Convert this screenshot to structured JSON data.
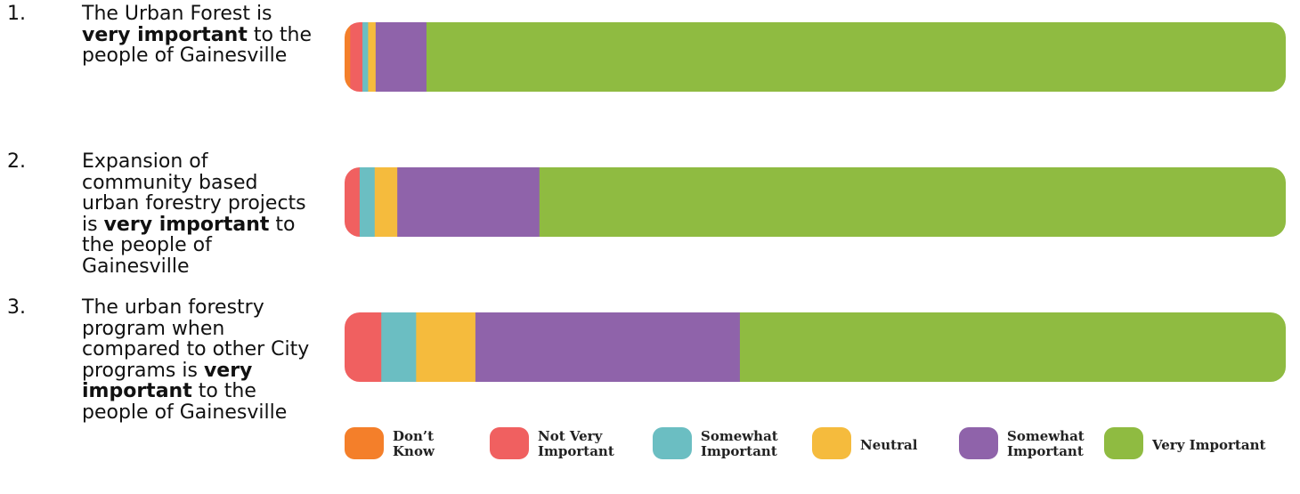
{
  "statements": [
    {
      "number": "1.",
      "before": "The Urban Forest is ",
      "bold": "very important",
      "after": " to the people of Gainesville"
    },
    {
      "number": "2.",
      "before": "Expansion of community based urban forestry projects is ",
      "bold": "very important",
      "after": " to the people of Gainesville"
    },
    {
      "number": "3.",
      "before": "The urban forestry program when compared to other City programs is ",
      "bold": "very important",
      "after": " to the people of Gainesville"
    }
  ],
  "chart_data": {
    "type": "bar",
    "orientation": "horizontal",
    "stacked": true,
    "normalized": true,
    "categories": [
      "1",
      "2",
      "3"
    ],
    "series": [
      {
        "name": "Don’t Know",
        "color": "#f47f2a",
        "values": [
          0.6,
          0,
          0
        ]
      },
      {
        "name": "Not Very Important",
        "color": "#f06060",
        "values": [
          1.3,
          1.6,
          3.9
        ]
      },
      {
        "name": "Somewhat Important",
        "color": "#6bbec2",
        "values": [
          0.6,
          1.6,
          3.7
        ]
      },
      {
        "name": "Neutral",
        "color": "#f5bb3d",
        "values": [
          0.8,
          2.4,
          6.3
        ]
      },
      {
        "name": "Somewhat Important",
        "color": "#8f63aa",
        "values": [
          5.4,
          15.1,
          28.1
        ]
      },
      {
        "name": "Very Important",
        "color": "#8fbb41",
        "values": [
          91.3,
          79.3,
          58.0
        ]
      }
    ],
    "legend": {
      "position": "bottom",
      "entries": [
        {
          "lines": [
            "Don’t",
            "Know"
          ],
          "color": "#f47f2a"
        },
        {
          "lines": [
            "Not Very",
            "Important"
          ],
          "color": "#f06060"
        },
        {
          "lines": [
            "Somewhat",
            "Important"
          ],
          "color": "#6bbec2"
        },
        {
          "lines": [
            "Neutral"
          ],
          "color": "#f5bb3d"
        },
        {
          "lines": [
            "Somewhat",
            "Important"
          ],
          "color": "#8f63aa"
        },
        {
          "lines": [
            "Very Important"
          ],
          "color": "#8fbb41"
        }
      ]
    },
    "title": "",
    "xlabel": "",
    "ylabel": "",
    "grid": false
  }
}
